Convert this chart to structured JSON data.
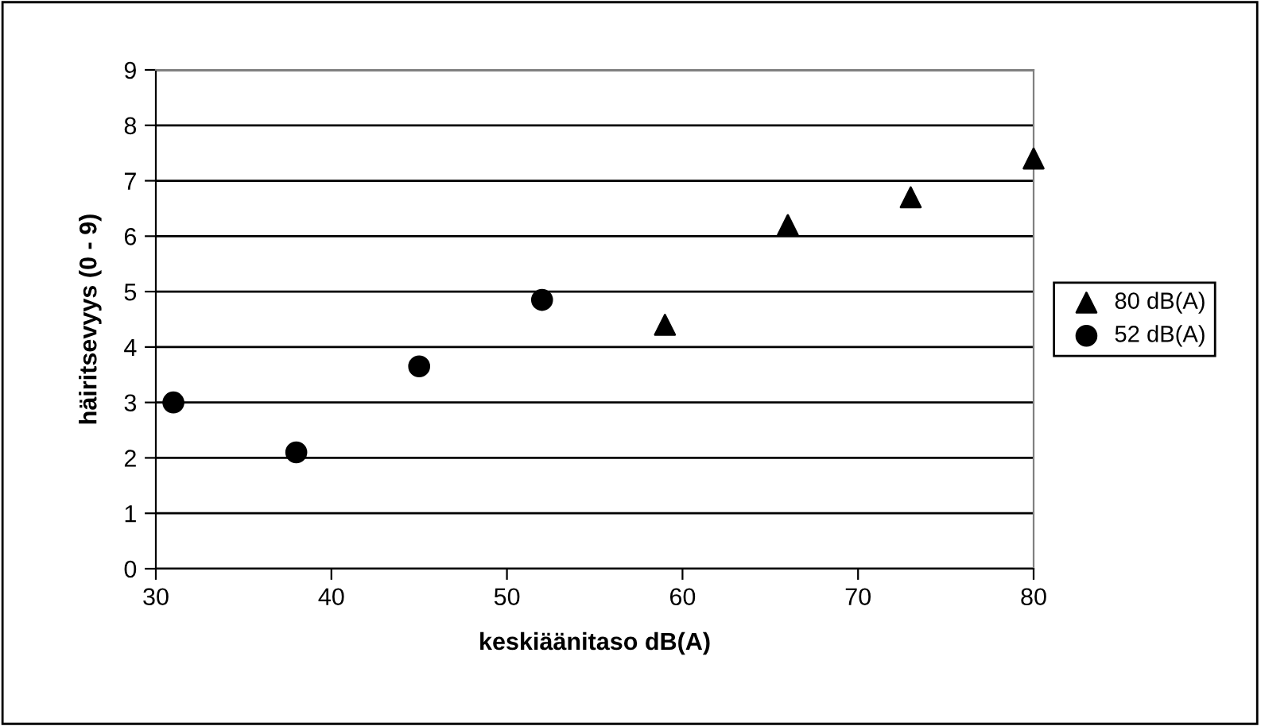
{
  "chart_data": {
    "type": "scatter",
    "xlabel": "keskiäänitaso dB(A)",
    "ylabel": "häiritsevyys (0 - 9)",
    "xlim": [
      30,
      80
    ],
    "xticks": [
      30,
      40,
      50,
      60,
      70,
      80
    ],
    "ylim": [
      0,
      9
    ],
    "yticks": [
      0,
      1,
      2,
      3,
      4,
      5,
      6,
      7,
      8,
      9
    ],
    "grid": "y",
    "legend": "right",
    "series": [
      {
        "name": "80 dB(A)",
        "color": "#000000",
        "marker": "triangle",
        "x": [
          59,
          66,
          73,
          80
        ],
        "values": [
          4.4,
          6.2,
          6.7,
          7.4
        ]
      },
      {
        "name": "52 dB(A)",
        "color": "#000000",
        "marker": "circle",
        "x": [
          31,
          38,
          45,
          52
        ],
        "values": [
          3.0,
          2.1,
          3.65,
          4.85
        ]
      }
    ]
  }
}
